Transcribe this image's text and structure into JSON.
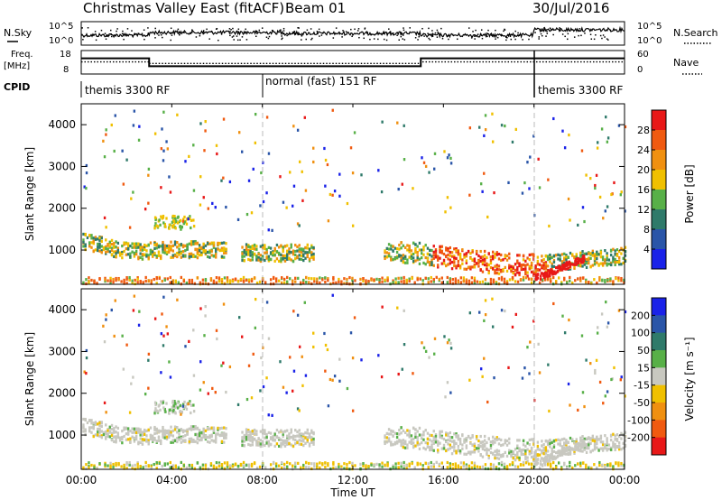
{
  "header": {
    "title": "Christmas Valley East (fitACF)",
    "beam": "Beam 01",
    "date": "30/Jul/2016"
  },
  "noise_panel": {
    "left_label": "N.Sky",
    "right_label": "N.Search",
    "left_ticks": [
      "10^5",
      "10^0"
    ],
    "right_ticks": [
      "10^5",
      "10^0"
    ]
  },
  "freq_panel": {
    "left_label_1": "Freq.",
    "left_label_2": "[MHz]",
    "right_label": "Nave",
    "left_ticks": [
      "18",
      "8"
    ],
    "right_ticks": [
      "60",
      "0"
    ]
  },
  "cpid": {
    "label": "CPID",
    "modes": [
      "themis 3300 RF",
      "normal (fast) 151 RF",
      "themis 3300 RF"
    ]
  },
  "x_axis": {
    "ticks": [
      "00:00",
      "04:00",
      "08:00",
      "12:00",
      "16:00",
      "20:00",
      "00:00"
    ],
    "label": "Time UT"
  },
  "power_panel": {
    "ylabel": "Slant Range [km]",
    "yticks": [
      "1000",
      "2000",
      "3000",
      "4000"
    ],
    "colorbar_label": "Power [dB]",
    "colorbar_ticks": [
      "4",
      "8",
      "12",
      "16",
      "20",
      "24",
      "28"
    ],
    "colors": [
      "#1a22e8",
      "#2a55a8",
      "#2f7a6a",
      "#58b048",
      "#f0c000",
      "#f09010",
      "#f05a10",
      "#e81818"
    ]
  },
  "velocity_panel": {
    "ylabel": "Slant Range [km]",
    "yticks": [
      "1000",
      "2000",
      "3000",
      "4000"
    ],
    "colorbar_label": "Velocity [m s⁻¹]",
    "colorbar_ticks": [
      "200",
      "100",
      "50",
      "15",
      "-15",
      "-50",
      "-100",
      "-200"
    ],
    "colors": [
      "#1a22e8",
      "#2a55a8",
      "#2f7a6a",
      "#58b048",
      "#c8c8c0",
      "#f0c000",
      "#f09010",
      "#f05a10",
      "#e81818"
    ]
  },
  "chart_data": {
    "type": "heatmap",
    "x_range_hours": [
      0,
      24
    ],
    "y_range_km": [
      180,
      4500
    ],
    "mode_change_times_UT": [
      "08:00",
      "20:00"
    ],
    "frequency_segments": [
      {
        "start": "00:00",
        "end": "03:00",
        "freq_MHz": 15
      },
      {
        "start": "03:00",
        "end": "15:00",
        "freq_MHz": 11
      },
      {
        "start": "15:00",
        "end": "20:00",
        "freq_MHz": 15
      },
      {
        "start": "20:00",
        "end": "24:00",
        "freq_MHz": 15
      }
    ],
    "power_band_center_km": [
      {
        "time": "00:00",
        "range": 1250
      },
      {
        "time": "02:00",
        "range": 1000
      },
      {
        "time": "05:00",
        "range": 1050
      },
      {
        "time": "08:00",
        "range": 950
      },
      {
        "time": "14:00",
        "range": 1000
      },
      {
        "time": "17:00",
        "range": 800
      },
      {
        "time": "19:30",
        "range": 650
      },
      {
        "time": "22:00",
        "range": 800
      },
      {
        "time": "24:00",
        "range": 900
      }
    ]
  }
}
